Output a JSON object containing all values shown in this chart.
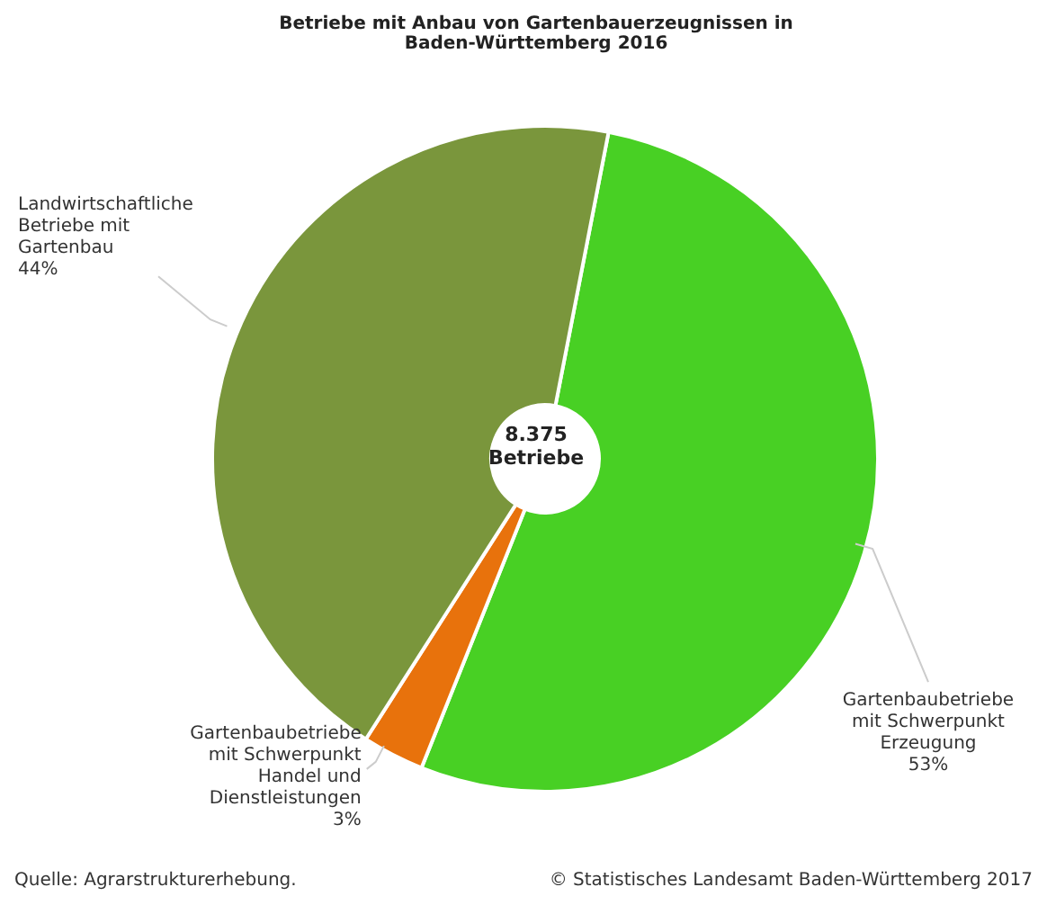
{
  "chart_data": {
    "type": "donut",
    "title": "Betriebe mit Anbau von Gartenbauerzeugnissen in Baden-Württemberg 2016",
    "categories": [
      "Gartenbaubetriebe mit Schwerpunkt Erzeugung",
      "Gartenbaubetriebe mit Schwerpunkt Handel und Dienstleistungen",
      "Landwirtschaftliche Betriebe mit Gartenbau"
    ],
    "values": [
      53,
      3,
      44
    ],
    "value_labels": [
      "53%",
      "3%",
      "44%"
    ],
    "colors": [
      "#48d024",
      "#e8720c",
      "#7a963c"
    ],
    "annotations": [
      "8.375 Betriebe",
      "Quelle: Agrarstrukturerhebung.",
      "© Statistisches Landesamt Baden-Württemberg 2017"
    ]
  }
}
